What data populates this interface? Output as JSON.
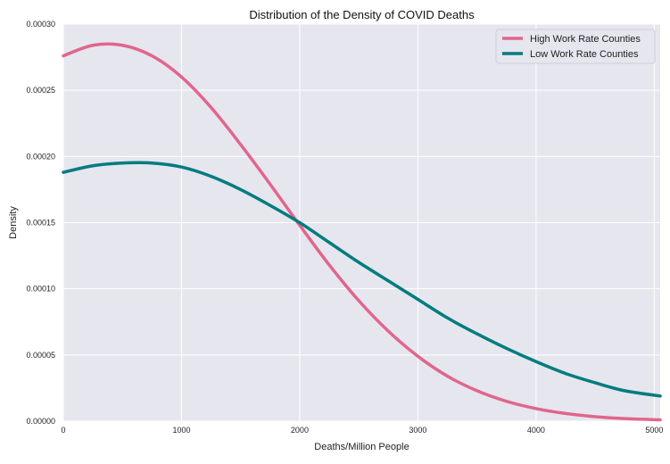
{
  "chart_data": {
    "type": "line",
    "title": "Distribution of the Density of COVID Deaths",
    "xlabel": "Deaths/Million People",
    "ylabel": "Density",
    "xlim": [
      0,
      5050
    ],
    "ylim": [
      0,
      0.0003
    ],
    "x_ticks": [
      0,
      1000,
      2000,
      3000,
      4000,
      5000
    ],
    "x_tick_labels": [
      "0",
      "1000",
      "2000",
      "3000",
      "4000",
      "5000"
    ],
    "y_ticks": [
      0,
      5e-05,
      0.0001,
      0.00015,
      0.0002,
      0.00025,
      0.0003
    ],
    "y_tick_labels": [
      "0.00000",
      "0.00005",
      "0.00010",
      "0.00015",
      "0.00020",
      "0.00025",
      "0.00030"
    ],
    "grid": true,
    "legend_position": "top-right",
    "background": "#e6e6ef",
    "series": [
      {
        "name": "High Work Rate Counties",
        "color": "#e0668c",
        "x": [
          0,
          250,
          500,
          750,
          1000,
          1250,
          1500,
          1750,
          2000,
          2250,
          2500,
          2750,
          3000,
          3250,
          3500,
          3750,
          4000,
          4250,
          4500,
          4750,
          5050
        ],
        "values": [
          0.000276,
          0.000284,
          0.000284,
          0.000276,
          0.00026,
          0.000237,
          0.000209,
          0.000179,
          0.000148,
          0.000118,
          9.1e-05,
          6.8e-05,
          4.9e-05,
          3.4e-05,
          2.3e-05,
          1.5e-05,
          9.5e-06,
          5.8e-06,
          3.4e-06,
          1.9e-06,
          1e-06
        ]
      },
      {
        "name": "Low Work Rate Counties",
        "color": "#007c7e",
        "x": [
          0,
          250,
          500,
          750,
          1000,
          1250,
          1500,
          1750,
          2000,
          2250,
          2500,
          2750,
          3000,
          3250,
          3500,
          3750,
          4000,
          4250,
          4500,
          4750,
          5050
        ],
        "values": [
          0.000188,
          0.000193,
          0.000195,
          0.000195,
          0.000192,
          0.000185,
          0.000175,
          0.000163,
          0.00015,
          0.000135,
          0.00012,
          0.000106,
          9.2e-05,
          7.8e-05,
          6.6e-05,
          5.5e-05,
          4.5e-05,
          3.6e-05,
          2.9e-05,
          2.3e-05,
          1.9e-05
        ]
      }
    ]
  }
}
